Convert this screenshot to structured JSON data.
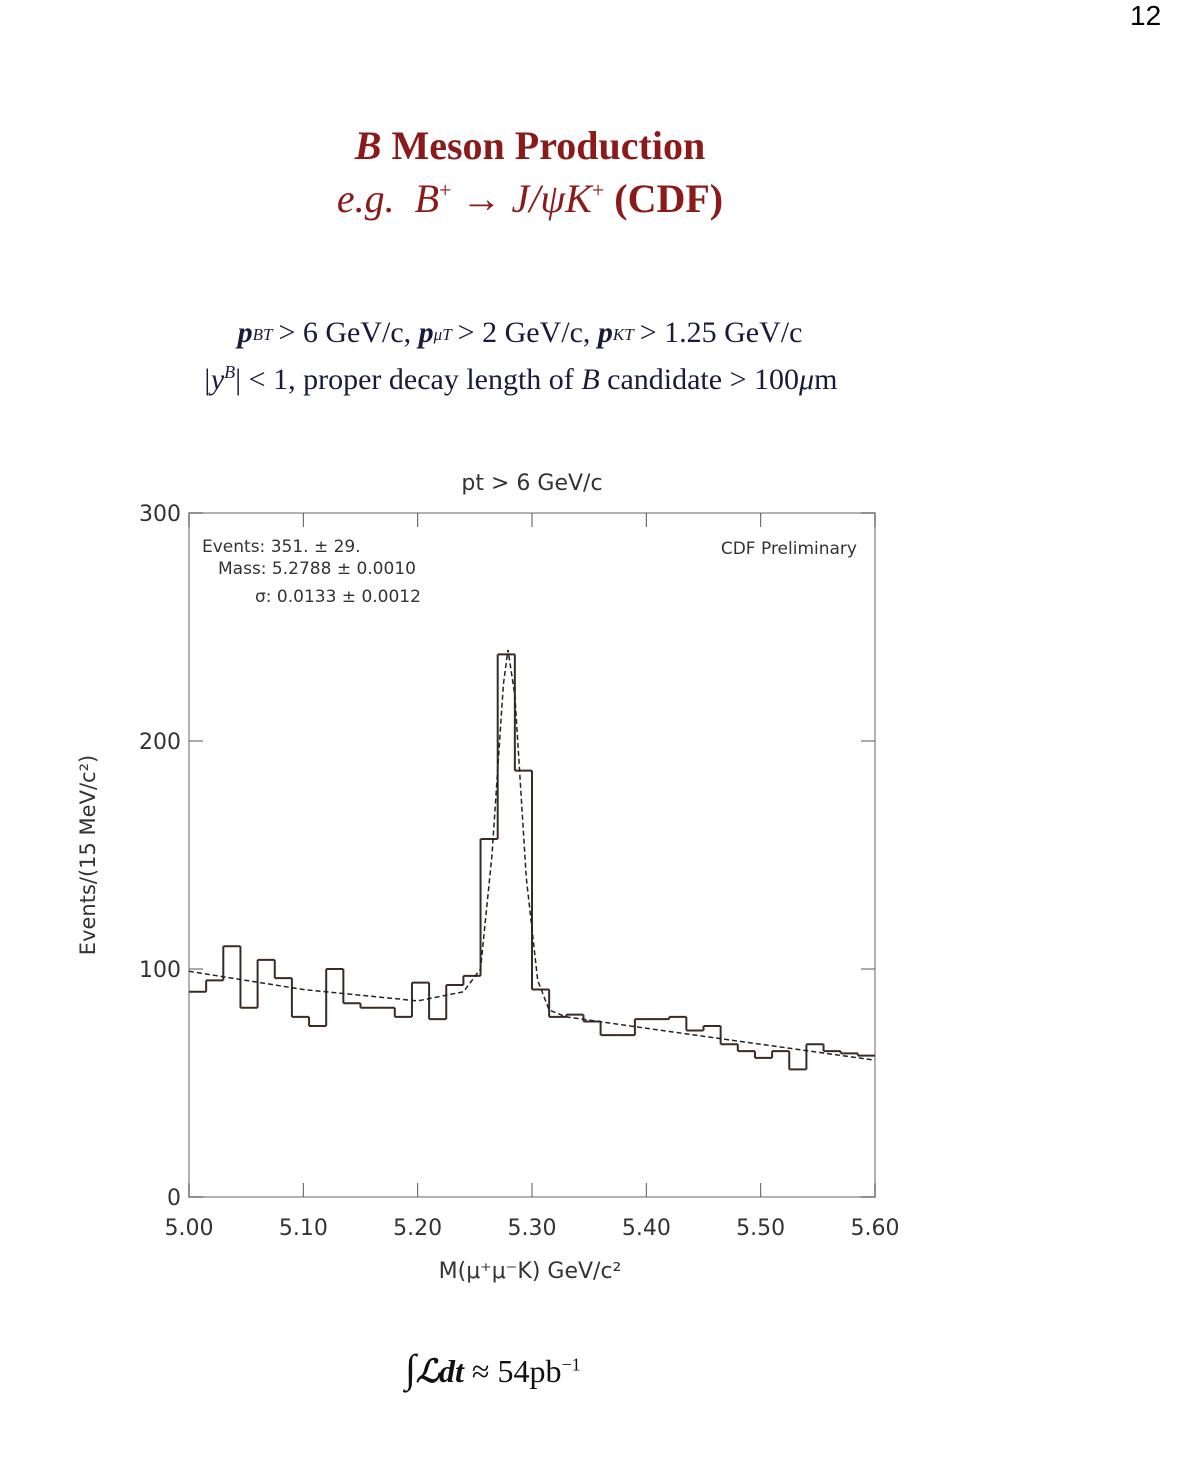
{
  "page_number": "12",
  "header": {
    "title": [
      "B",
      "Meson Production"
    ],
    "subtitle": [
      "e.g.",
      "B",
      "+",
      "→ J/ψK",
      "+",
      "(CDF)"
    ]
  },
  "cuts": {
    "line1": [
      "p",
      "T",
      "B",
      "> 6 GeV/c,",
      "p",
      "T",
      "μ",
      "> 2 GeV/c,",
      "p",
      "T",
      "K",
      "> 1.25 GeV/c"
    ],
    "line2": [
      "|y",
      "B",
      "| < 1, proper decay length of",
      "B",
      "candidate > 100",
      "μ",
      "m"
    ]
  },
  "luminosity": [
    "∫",
    "ℒdt",
    "≈ 54pb",
    "−1"
  ],
  "chart_data": {
    "type": "histogram",
    "title": "pt > 6 GeV/c",
    "xlabel": "M(μ⁺μ⁻K) GeV/c²",
    "ylabel": "Events/(15 MeV/c²)",
    "annotations": [
      "Events: 351. ± 29.",
      "Mass: 5.2788 ± 0.0010",
      "σ: 0.0133 ± 0.0012",
      "CDF Preliminary"
    ],
    "bins": [
      5,
      5.015,
      5.03,
      5.045,
      5.06,
      5.075,
      5.09,
      5.105,
      5.12,
      5.135,
      5.15,
      5.165,
      5.18,
      5.195,
      5.21,
      5.225,
      5.24,
      5.255,
      5.27,
      5.285,
      5.3,
      5.315,
      5.33,
      5.345,
      5.36,
      5.375,
      5.39,
      5.405,
      5.42,
      5.435,
      5.45,
      5.465,
      5.48,
      5.495,
      5.51,
      5.525,
      5.54,
      5.555,
      5.57,
      5.585,
      5.6
    ],
    "counts": [
      90,
      95,
      110,
      83,
      104,
      96,
      79,
      75,
      100,
      85,
      83,
      83,
      79,
      94,
      78,
      93,
      97,
      157,
      238,
      187,
      91,
      79,
      80,
      77,
      71,
      71,
      78,
      78,
      79,
      73,
      75,
      67,
      64,
      61,
      64,
      56,
      67,
      64,
      63,
      62
    ],
    "color": "#3a2a20",
    "fit": {
      "color": "#222222",
      "x": [
        5,
        5.1,
        5.2,
        5.24,
        5.255,
        5.265,
        5.275,
        5.279,
        5.285,
        5.295,
        5.305,
        5.315,
        5.33,
        5.4,
        5.5,
        5.6
      ],
      "values": [
        99,
        91,
        86,
        90,
        100,
        150,
        225,
        240,
        220,
        140,
        95,
        82,
        79,
        74,
        67,
        60
      ]
    },
    "xlim": [
      5,
      5.6
    ],
    "ylim": [
      0,
      300
    ],
    "xticks": [
      {
        "value": 5,
        "label": "5.00"
      },
      {
        "value": 5.1,
        "label": "5.10"
      },
      {
        "value": 5.2,
        "label": "5.20"
      },
      {
        "value": 5.3,
        "label": "5.30"
      },
      {
        "value": 5.4,
        "label": "5.40"
      },
      {
        "value": 5.5,
        "label": "5.50"
      },
      {
        "value": 5.6,
        "label": "5.60"
      }
    ],
    "yticks": [
      0,
      100,
      200,
      300
    ]
  }
}
